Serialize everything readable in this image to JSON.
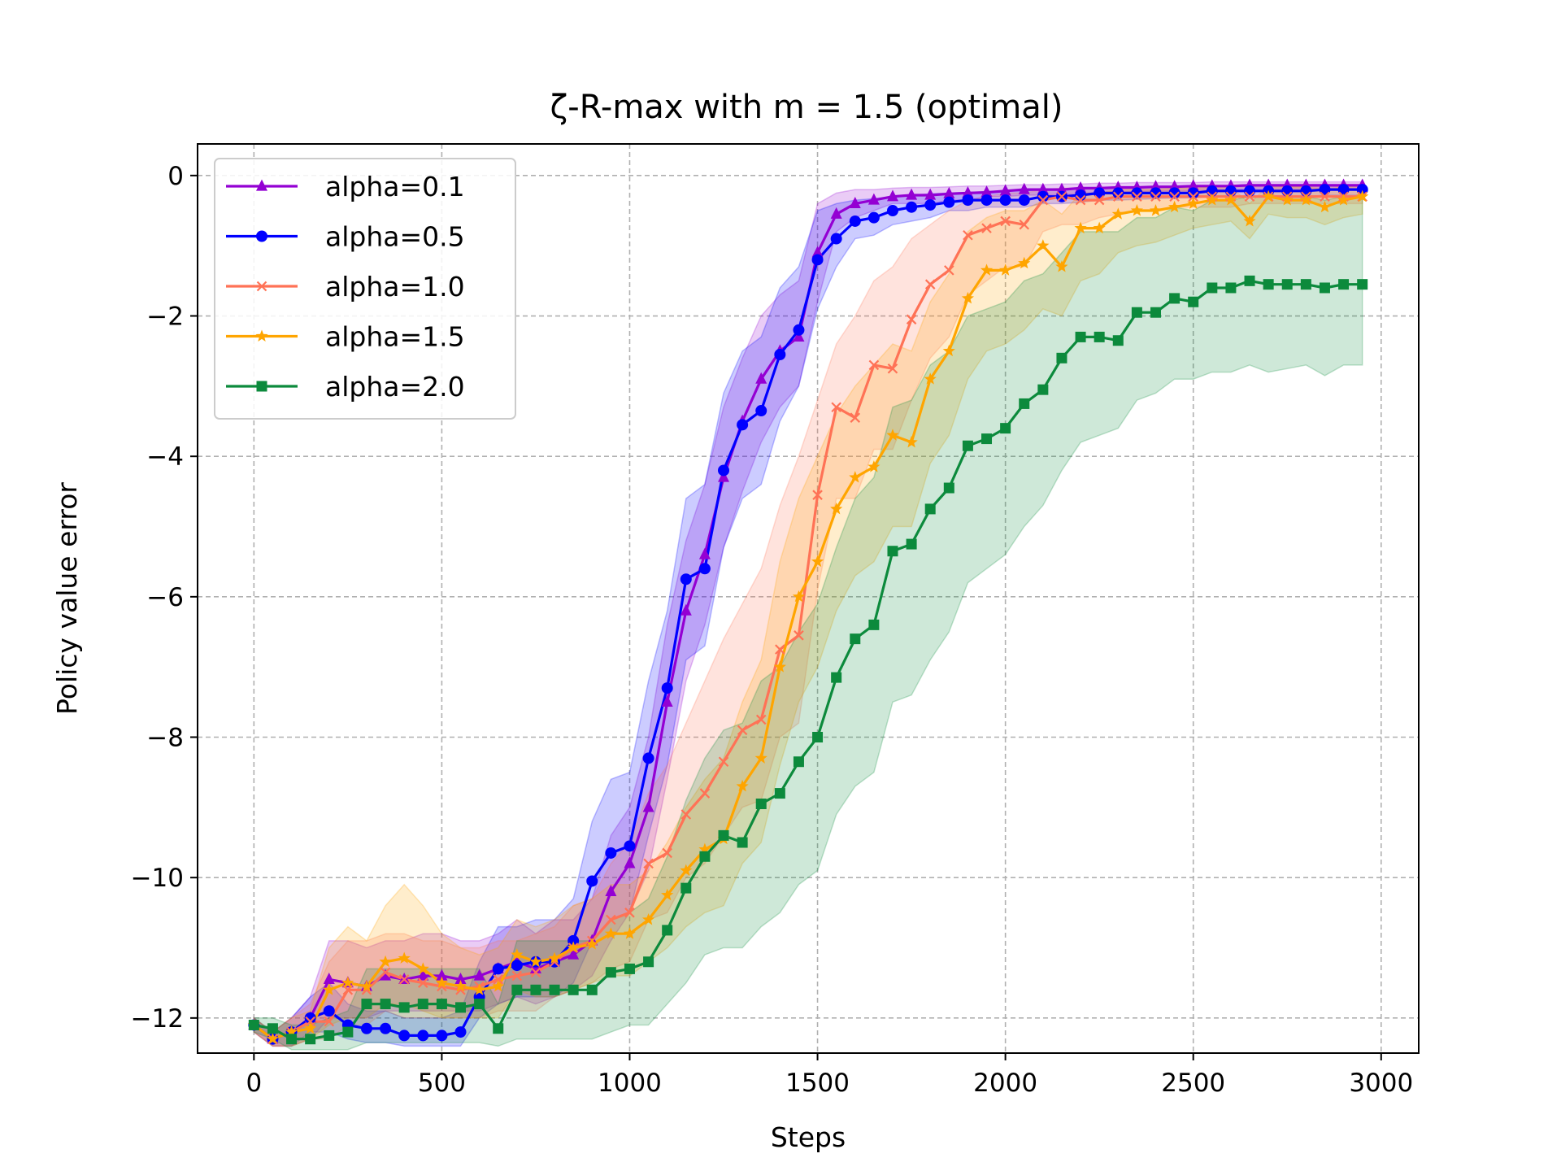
{
  "chart_data": {
    "type": "line",
    "title": "ζ-R-max with m = 1.5 (optimal)",
    "xlabel": "Steps",
    "ylabel": "Policy value error",
    "xlim": [
      -150,
      3100
    ],
    "ylim": [
      -12.5,
      0.45
    ],
    "xticks": [
      0,
      500,
      1000,
      1500,
      2000,
      2500,
      3000
    ],
    "yticks": [
      0,
      -2,
      -4,
      -6,
      -8,
      -10,
      -12
    ],
    "xtick_labels": [
      "0",
      "500",
      "1000",
      "1500",
      "2000",
      "2500",
      "3000"
    ],
    "ytick_labels": [
      "0",
      "−2",
      "−4",
      "−6",
      "−8",
      "−10",
      "−12"
    ],
    "grid": true,
    "legend_position": "upper-left",
    "x": [
      0,
      50,
      100,
      150,
      200,
      250,
      300,
      350,
      400,
      450,
      500,
      550,
      600,
      650,
      700,
      750,
      800,
      850,
      900,
      950,
      1000,
      1050,
      1100,
      1150,
      1200,
      1250,
      1300,
      1350,
      1400,
      1450,
      1500,
      1550,
      1600,
      1650,
      1700,
      1750,
      1800,
      1850,
      1900,
      1950,
      2000,
      2050,
      2100,
      2150,
      2200,
      2250,
      2300,
      2350,
      2400,
      2450,
      2500,
      2550,
      2600,
      2650,
      2700,
      2750,
      2800,
      2850,
      2900,
      2950
    ],
    "series": [
      {
        "name": "alpha=0.1",
        "color": "#9400d3",
        "marker": "triangle",
        "values": [
          -12.1,
          -12.3,
          -12.2,
          -12.0,
          -11.45,
          -11.5,
          -11.55,
          -11.4,
          -11.45,
          -11.4,
          -11.4,
          -11.45,
          -11.4,
          -11.3,
          -11.2,
          -11.3,
          -11.2,
          -11.1,
          -10.9,
          -10.2,
          -9.8,
          -9.0,
          -7.5,
          -6.2,
          -5.4,
          -4.3,
          -3.5,
          -2.9,
          -2.5,
          -2.3,
          -1.1,
          -0.55,
          -0.4,
          -0.35,
          -0.3,
          -0.28,
          -0.28,
          -0.26,
          -0.25,
          -0.24,
          -0.22,
          -0.2,
          -0.2,
          -0.2,
          -0.18,
          -0.18,
          -0.17,
          -0.17,
          -0.16,
          -0.16,
          -0.15,
          -0.15,
          -0.15,
          -0.14,
          -0.14,
          -0.14,
          -0.14,
          -0.14,
          -0.14,
          -0.14
        ],
        "lower": [
          -12.2,
          -12.4,
          -12.4,
          -12.3,
          -12.0,
          -12.0,
          -12.0,
          -11.9,
          -11.9,
          -11.9,
          -11.9,
          -11.9,
          -11.9,
          -11.8,
          -11.7,
          -11.8,
          -11.7,
          -11.6,
          -11.4,
          -10.9,
          -10.5,
          -9.9,
          -8.6,
          -7.2,
          -6.4,
          -5.3,
          -4.5,
          -3.8,
          -3.3,
          -3.0,
          -1.8,
          -0.8,
          -0.6,
          -0.5,
          -0.4,
          -0.4,
          -0.4,
          -0.35,
          -0.35,
          -0.3,
          -0.3,
          -0.28,
          -0.28,
          -0.27,
          -0.26,
          -0.25,
          -0.24,
          -0.23,
          -0.22,
          -0.22,
          -0.22,
          -0.21,
          -0.21,
          -0.2,
          -0.2,
          -0.2,
          -0.2,
          -0.2,
          -0.2,
          -0.2
        ],
        "upper": [
          -12.0,
          -12.2,
          -12.0,
          -11.7,
          -10.9,
          -10.9,
          -11.0,
          -10.9,
          -10.9,
          -10.8,
          -10.8,
          -10.9,
          -10.9,
          -10.8,
          -10.6,
          -10.8,
          -10.6,
          -10.6,
          -10.3,
          -9.4,
          -9.0,
          -8.0,
          -6.4,
          -5.2,
          -4.4,
          -3.3,
          -2.6,
          -2.0,
          -1.7,
          -1.5,
          -0.4,
          -0.25,
          -0.2,
          -0.2,
          -0.18,
          -0.17,
          -0.17,
          -0.16,
          -0.15,
          -0.15,
          -0.14,
          -0.13,
          -0.13,
          -0.12,
          -0.12,
          -0.11,
          -0.11,
          -0.1,
          -0.1,
          -0.1,
          -0.1,
          -0.09,
          -0.09,
          -0.09,
          -0.09,
          -0.09,
          -0.09,
          -0.09,
          -0.09,
          -0.09
        ]
      },
      {
        "name": "alpha=0.5",
        "color": "#0000ff",
        "marker": "circle",
        "values": [
          -12.1,
          -12.3,
          -12.2,
          -12.0,
          -11.9,
          -12.1,
          -12.15,
          -12.15,
          -12.25,
          -12.25,
          -12.25,
          -12.2,
          -11.7,
          -11.3,
          -11.25,
          -11.2,
          -11.2,
          -10.9,
          -10.05,
          -9.65,
          -9.55,
          -8.3,
          -7.3,
          -5.75,
          -5.6,
          -4.2,
          -3.55,
          -3.35,
          -2.55,
          -2.2,
          -1.2,
          -0.9,
          -0.65,
          -0.6,
          -0.5,
          -0.45,
          -0.42,
          -0.38,
          -0.35,
          -0.35,
          -0.35,
          -0.35,
          -0.3,
          -0.3,
          -0.28,
          -0.25,
          -0.25,
          -0.25,
          -0.25,
          -0.25,
          -0.25,
          -0.22,
          -0.22,
          -0.22,
          -0.22,
          -0.22,
          -0.22,
          -0.2,
          -0.2,
          -0.2
        ],
        "lower": [
          -12.2,
          -12.4,
          -12.4,
          -12.2,
          -12.2,
          -12.3,
          -12.35,
          -12.35,
          -12.4,
          -12.4,
          -12.4,
          -12.4,
          -12.0,
          -11.8,
          -11.7,
          -11.7,
          -11.7,
          -11.5,
          -10.9,
          -10.6,
          -10.5,
          -9.4,
          -8.4,
          -6.9,
          -6.7,
          -5.3,
          -4.6,
          -4.4,
          -3.5,
          -3.0,
          -1.9,
          -1.3,
          -0.9,
          -0.85,
          -0.7,
          -0.65,
          -0.6,
          -0.5,
          -0.5,
          -0.45,
          -0.45,
          -0.45,
          -0.4,
          -0.4,
          -0.38,
          -0.35,
          -0.35,
          -0.34,
          -0.33,
          -0.32,
          -0.32,
          -0.3,
          -0.3,
          -0.3,
          -0.3,
          -0.3,
          -0.3,
          -0.28,
          -0.28,
          -0.28
        ],
        "upper": [
          -12.0,
          -12.2,
          -12.0,
          -11.7,
          -11.5,
          -11.8,
          -11.9,
          -11.9,
          -12.0,
          -12.0,
          -12.0,
          -11.9,
          -11.2,
          -10.7,
          -10.7,
          -10.6,
          -10.6,
          -10.3,
          -9.2,
          -8.6,
          -8.5,
          -7.2,
          -6.2,
          -4.6,
          -4.4,
          -3.1,
          -2.5,
          -2.3,
          -1.6,
          -1.3,
          -0.5,
          -0.4,
          -0.35,
          -0.33,
          -0.3,
          -0.28,
          -0.26,
          -0.25,
          -0.24,
          -0.23,
          -0.22,
          -0.22,
          -0.2,
          -0.2,
          -0.19,
          -0.18,
          -0.18,
          -0.17,
          -0.17,
          -0.16,
          -0.16,
          -0.15,
          -0.15,
          -0.15,
          -0.15,
          -0.15,
          -0.15,
          -0.14,
          -0.14,
          -0.14
        ]
      },
      {
        "name": "alpha=1.0",
        "color": "#ff7256",
        "marker": "x",
        "values": [
          -12.1,
          -12.3,
          -12.2,
          -12.05,
          -12.05,
          -11.6,
          -11.6,
          -11.35,
          -11.45,
          -11.5,
          -11.55,
          -11.6,
          -11.55,
          -11.45,
          -11.4,
          -11.35,
          -11.2,
          -11.0,
          -10.9,
          -10.6,
          -10.5,
          -9.8,
          -9.65,
          -9.1,
          -8.8,
          -8.35,
          -7.9,
          -7.75,
          -6.75,
          -6.55,
          -4.55,
          -3.3,
          -3.45,
          -2.7,
          -2.75,
          -2.05,
          -1.55,
          -1.35,
          -0.85,
          -0.75,
          -0.65,
          -0.7,
          -0.35,
          -0.3,
          -0.35,
          -0.35,
          -0.3,
          -0.3,
          -0.3,
          -0.3,
          -0.3,
          -0.3,
          -0.3,
          -0.3,
          -0.3,
          -0.3,
          -0.3,
          -0.3,
          -0.3,
          -0.3
        ],
        "lower": [
          -12.2,
          -12.4,
          -12.4,
          -12.3,
          -12.3,
          -12.1,
          -12.1,
          -11.9,
          -12.0,
          -12.0,
          -12.0,
          -12.0,
          -12.0,
          -11.9,
          -11.9,
          -11.9,
          -11.7,
          -11.6,
          -11.5,
          -11.3,
          -11.2,
          -10.6,
          -10.5,
          -10.0,
          -9.8,
          -9.4,
          -9.0,
          -8.9,
          -8.0,
          -7.8,
          -5.9,
          -4.6,
          -4.6,
          -3.9,
          -3.9,
          -3.2,
          -2.6,
          -2.3,
          -1.7,
          -1.5,
          -1.3,
          -1.3,
          -0.8,
          -0.7,
          -0.7,
          -0.6,
          -0.55,
          -0.5,
          -0.5,
          -0.45,
          -0.45,
          -0.45,
          -0.45,
          -0.4,
          -0.4,
          -0.4,
          -0.4,
          -0.4,
          -0.4,
          -0.4
        ],
        "upper": [
          -12.0,
          -12.2,
          -12.0,
          -11.8,
          -11.2,
          -10.9,
          -10.9,
          -10.8,
          -10.8,
          -10.9,
          -10.9,
          -11.0,
          -11.0,
          -10.9,
          -10.9,
          -10.8,
          -10.7,
          -10.4,
          -10.3,
          -9.8,
          -9.5,
          -8.8,
          -8.4,
          -7.8,
          -7.2,
          -6.6,
          -6.1,
          -5.6,
          -4.7,
          -4.0,
          -3.2,
          -2.4,
          -2.0,
          -1.5,
          -1.3,
          -0.9,
          -0.7,
          -0.5,
          -0.35,
          -0.3,
          -0.25,
          -0.25,
          -0.2,
          -0.18,
          -0.18,
          -0.18,
          -0.18,
          -0.17,
          -0.17,
          -0.17,
          -0.16,
          -0.16,
          -0.16,
          -0.16,
          -0.16,
          -0.16,
          -0.16,
          -0.16,
          -0.16,
          -0.16
        ]
      },
      {
        "name": "alpha=1.5",
        "color": "#ffa500",
        "marker": "star",
        "values": [
          -12.1,
          -12.3,
          -12.2,
          -12.15,
          -11.6,
          -11.5,
          -11.55,
          -11.2,
          -11.15,
          -11.3,
          -11.5,
          -11.55,
          -11.6,
          -11.55,
          -11.1,
          -11.2,
          -11.15,
          -11.0,
          -10.95,
          -10.8,
          -10.8,
          -10.6,
          -10.25,
          -9.9,
          -9.6,
          -9.45,
          -8.7,
          -8.3,
          -7.0,
          -6.0,
          -5.5,
          -4.75,
          -4.3,
          -4.15,
          -3.7,
          -3.8,
          -2.9,
          -2.5,
          -1.75,
          -1.35,
          -1.35,
          -1.25,
          -1.0,
          -1.3,
          -0.75,
          -0.75,
          -0.55,
          -0.5,
          -0.5,
          -0.45,
          -0.4,
          -0.35,
          -0.35,
          -0.65,
          -0.3,
          -0.35,
          -0.35,
          -0.45,
          -0.35,
          -0.3
        ],
        "lower": [
          -12.2,
          -12.4,
          -12.4,
          -12.3,
          -12.1,
          -12.0,
          -12.0,
          -11.8,
          -11.8,
          -11.9,
          -12.0,
          -12.0,
          -12.0,
          -12.0,
          -11.6,
          -11.7,
          -11.7,
          -11.6,
          -11.5,
          -11.4,
          -11.4,
          -11.2,
          -11.0,
          -10.7,
          -10.5,
          -10.4,
          -9.8,
          -9.5,
          -8.4,
          -7.5,
          -7.0,
          -6.2,
          -5.7,
          -5.5,
          -5.0,
          -5.0,
          -4.1,
          -3.7,
          -2.9,
          -2.5,
          -2.4,
          -2.2,
          -1.9,
          -2.0,
          -1.5,
          -1.4,
          -1.1,
          -1.0,
          -0.95,
          -0.85,
          -0.75,
          -0.7,
          -0.65,
          -0.9,
          -0.55,
          -0.6,
          -0.6,
          -0.7,
          -0.6,
          -0.55
        ],
        "upper": [
          -12.0,
          -12.2,
          -12.0,
          -11.9,
          -11.0,
          -10.7,
          -10.9,
          -10.4,
          -10.1,
          -10.4,
          -10.8,
          -11.0,
          -11.1,
          -11.0,
          -10.6,
          -10.7,
          -10.6,
          -10.4,
          -10.3,
          -10.1,
          -10.1,
          -9.9,
          -9.5,
          -9.0,
          -8.6,
          -8.3,
          -7.5,
          -6.9,
          -5.5,
          -4.6,
          -4.0,
          -3.4,
          -3.0,
          -2.7,
          -2.4,
          -2.5,
          -1.8,
          -1.4,
          -0.8,
          -0.6,
          -0.5,
          -0.5,
          -0.35,
          -0.55,
          -0.25,
          -0.25,
          -0.2,
          -0.2,
          -0.2,
          -0.18,
          -0.18,
          -0.16,
          -0.16,
          -0.4,
          -0.14,
          -0.16,
          -0.16,
          -0.2,
          -0.16,
          -0.14
        ]
      },
      {
        "name": "alpha=2.0",
        "color": "#0c8a3c",
        "marker": "square",
        "values": [
          -12.1,
          -12.15,
          -12.3,
          -12.3,
          -12.25,
          -12.2,
          -11.8,
          -11.8,
          -11.85,
          -11.8,
          -11.8,
          -11.85,
          -11.8,
          -12.15,
          -11.6,
          -11.6,
          -11.6,
          -11.6,
          -11.6,
          -11.35,
          -11.3,
          -11.2,
          -10.75,
          -10.15,
          -9.7,
          -9.4,
          -9.5,
          -8.95,
          -8.8,
          -8.35,
          -8.0,
          -7.15,
          -6.6,
          -6.4,
          -5.35,
          -5.25,
          -4.75,
          -4.45,
          -3.85,
          -3.75,
          -3.6,
          -3.25,
          -3.05,
          -2.6,
          -2.3,
          -2.3,
          -2.35,
          -1.95,
          -1.95,
          -1.75,
          -1.8,
          -1.6,
          -1.6,
          -1.5,
          -1.55,
          -1.55,
          -1.55,
          -1.6,
          -1.55,
          -1.55
        ],
        "lower": [
          -12.2,
          -12.3,
          -12.45,
          -12.45,
          -12.45,
          -12.45,
          -12.35,
          -12.35,
          -12.35,
          -12.35,
          -12.35,
          -12.35,
          -12.35,
          -12.4,
          -12.3,
          -12.3,
          -12.3,
          -12.3,
          -12.3,
          -12.2,
          -12.1,
          -12.1,
          -11.8,
          -11.5,
          -11.1,
          -11.0,
          -11.0,
          -10.7,
          -10.5,
          -10.1,
          -9.9,
          -9.1,
          -8.7,
          -8.5,
          -7.5,
          -7.4,
          -6.9,
          -6.5,
          -5.8,
          -5.6,
          -5.4,
          -5.0,
          -4.7,
          -4.2,
          -3.8,
          -3.7,
          -3.6,
          -3.2,
          -3.1,
          -2.9,
          -2.9,
          -2.8,
          -2.8,
          -2.7,
          -2.8,
          -2.75,
          -2.7,
          -2.85,
          -2.7,
          -2.7
        ],
        "upper": [
          -12.0,
          -12.0,
          -12.1,
          -12.1,
          -12.0,
          -11.9,
          -11.3,
          -11.3,
          -11.3,
          -11.3,
          -11.3,
          -11.3,
          -11.3,
          -11.8,
          -10.9,
          -10.9,
          -10.9,
          -10.9,
          -10.9,
          -10.6,
          -10.5,
          -10.3,
          -9.7,
          -8.9,
          -8.3,
          -7.9,
          -7.8,
          -7.2,
          -7.0,
          -6.5,
          -6.1,
          -5.3,
          -4.6,
          -4.3,
          -3.3,
          -3.2,
          -2.7,
          -2.5,
          -2.0,
          -1.9,
          -1.8,
          -1.5,
          -1.4,
          -1.1,
          -0.8,
          -0.8,
          -0.8,
          -0.6,
          -0.6,
          -0.45,
          -0.5,
          -0.35,
          -0.35,
          -0.3,
          -0.3,
          -0.3,
          -0.3,
          -0.35,
          -0.3,
          -0.3
        ]
      }
    ]
  }
}
